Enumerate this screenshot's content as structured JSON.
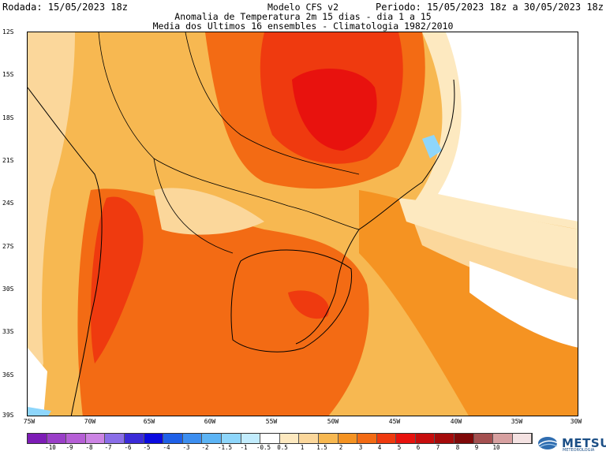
{
  "header": {
    "run": "Rodada: 15/05/2023 18z",
    "period": "Periodo: 15/05/2023 18z a 30/05/2023 18z",
    "model": "Modelo CFS v2",
    "subtitle": "Anomalia de Temperatura 2m 15 dias - dia 1 a 15",
    "subtitle2": "Media dos Ultimos 16 ensembles - Climatologia 1982/2010"
  },
  "axes": {
    "lat_labels": [
      "12S",
      "15S",
      "18S",
      "21S",
      "24S",
      "27S",
      "30S",
      "33S",
      "36S",
      "39S"
    ],
    "lon_labels": [
      "75W",
      "70W",
      "65W",
      "60W",
      "55W",
      "50W",
      "45W",
      "40W",
      "35W",
      "30W"
    ]
  },
  "colorbar": {
    "labels": [
      "-10",
      "-9",
      "-8",
      "-7",
      "-6",
      "-5",
      "-4",
      "-3",
      "-2",
      "-1.5",
      "-1",
      "-0.5",
      "0.5",
      "1",
      "1.5",
      "2",
      "3",
      "4",
      "5",
      "6",
      "7",
      "8",
      "9",
      "10"
    ],
    "colors": [
      "#7d1cb6",
      "#9a3fc8",
      "#b65fd6",
      "#cc84e4",
      "#8a6ee8",
      "#3b2bd8",
      "#0a0ae0",
      "#1e60e8",
      "#3c8ef0",
      "#5cb4f5",
      "#8ed6fb",
      "#c2ecfd",
      "#ffffff",
      "#fde9c0",
      "#fbd79b",
      "#f7b851",
      "#f59322",
      "#f36b14",
      "#ef3a0f",
      "#e8120e",
      "#c70d0d",
      "#a50b0b",
      "#7f0909",
      "#a45050",
      "#d7a0a0",
      "#f4e2e2"
    ]
  },
  "logo": {
    "text": "METSUL",
    "sub": "METEOROLOGIA",
    "icon": "metsul-globe-icon"
  }
}
